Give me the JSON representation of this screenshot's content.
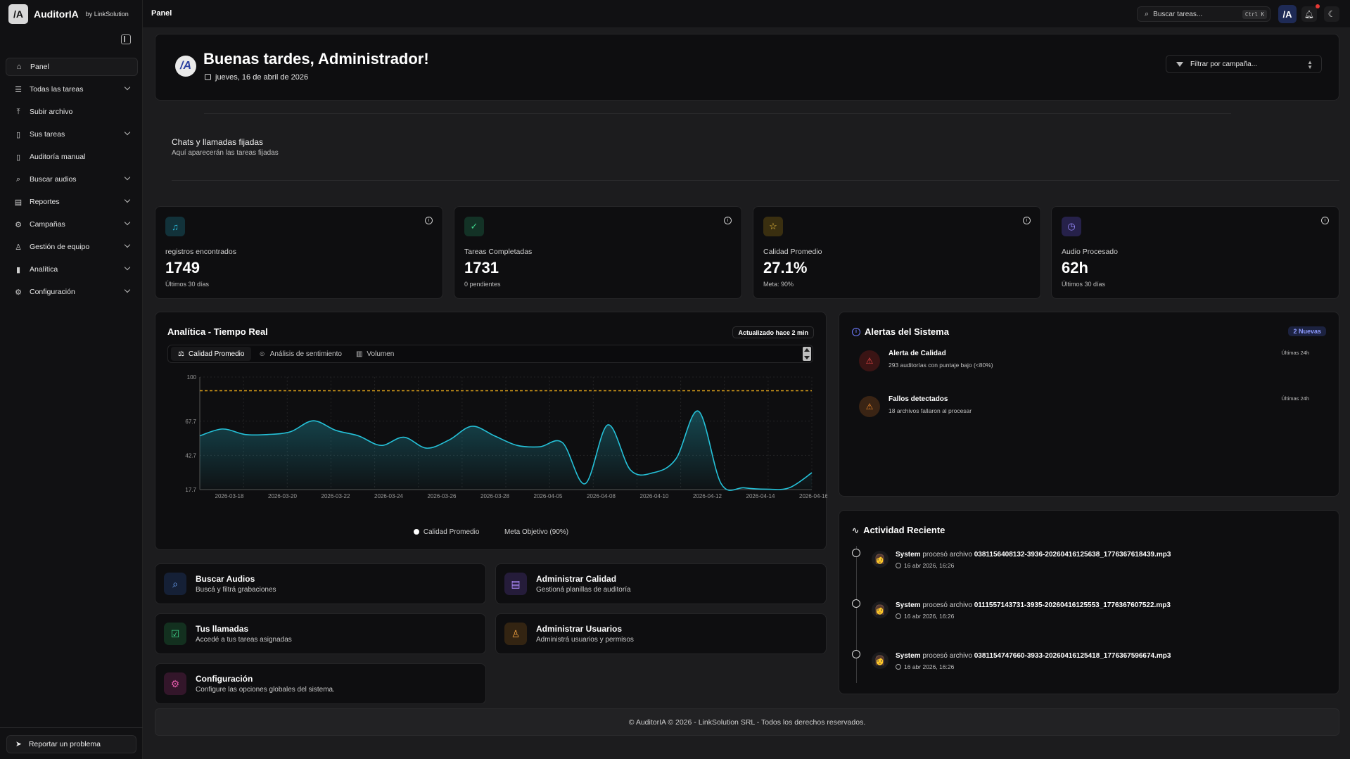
{
  "brand": {
    "name": "AuditorIA",
    "by": "by LinkSolution",
    "logo_letter": "/A"
  },
  "topbar": {
    "title": "Panel",
    "search_placeholder": "Buscar tareas...",
    "shortcut": "Ctrl K",
    "avatar_letter": "/A"
  },
  "sidebar": {
    "items": [
      {
        "label": "Panel",
        "icon": "home-icon",
        "glyph": "⌂",
        "active": true,
        "chevron": false
      },
      {
        "label": "Todas las tareas",
        "icon": "list-icon",
        "glyph": "☰",
        "chevron": true
      },
      {
        "label": "Subir archivo",
        "icon": "upload-icon",
        "glyph": "⤒",
        "chevron": false
      },
      {
        "label": "Sus tareas",
        "icon": "file-icon",
        "glyph": "▯",
        "chevron": true
      },
      {
        "label": "Auditoría manual",
        "icon": "file-plus-icon",
        "glyph": "▯",
        "chevron": false
      },
      {
        "label": "Buscar audios",
        "icon": "search-icon",
        "glyph": "⌕",
        "chevron": true
      },
      {
        "label": "Reportes",
        "icon": "report-icon",
        "glyph": "▤",
        "chevron": true
      },
      {
        "label": "Campañas",
        "icon": "campaign-icon",
        "glyph": "⚙",
        "chevron": true
      },
      {
        "label": "Gestión de equipo",
        "icon": "users-icon",
        "glyph": "♙",
        "chevron": true
      },
      {
        "label": "Analítica",
        "icon": "bar-chart-icon",
        "glyph": "▮",
        "chevron": true
      },
      {
        "label": "Configuración",
        "icon": "gear-icon",
        "glyph": "⚙",
        "chevron": true
      }
    ],
    "report_button": "Reportar un problema"
  },
  "header": {
    "greeting": "Buenas tardes, Administrador!",
    "date": "jueves, 16 de abril de 2026",
    "filter_placeholder": "Filtrar por campaña..."
  },
  "pinned": {
    "title": "Chats y llamadas fijadas",
    "subtitle": "Aquí aparecerán las tareas fijadas"
  },
  "stats": [
    {
      "label": "registros encontrados",
      "value": "1749",
      "sub": "Últimos 30 días",
      "icon": "file-audio-icon",
      "glyph": "♫",
      "color": "#2bb7d6",
      "bg": "#12323a"
    },
    {
      "label": "Tareas Completadas",
      "value": "1731",
      "sub": "0 pendientes",
      "icon": "check-circle-icon",
      "glyph": "✓",
      "color": "#3fd18a",
      "bg": "#133226"
    },
    {
      "label": "Calidad Promedio",
      "value": "27.1%",
      "sub": "Meta: 90%",
      "icon": "star-icon",
      "glyph": "☆",
      "color": "#f5c542",
      "bg": "#3a2f10"
    },
    {
      "label": "Audio Procesado",
      "value": "62h",
      "sub": "Últimos 30 días",
      "icon": "clock-icon",
      "glyph": "◷",
      "color": "#9a8cff",
      "bg": "#26214a"
    }
  ],
  "analytics": {
    "title": "Analítica - Tiempo Real",
    "updated": "Actualizado hace 2 min",
    "tabs": [
      {
        "label": "Calidad Promedio",
        "icon": "scale-icon",
        "glyph": "⚖",
        "active": true
      },
      {
        "label": "Análisis de sentimiento",
        "icon": "smile-icon",
        "glyph": "☺",
        "active": false
      },
      {
        "label": "Volumen",
        "icon": "volume-chart-icon",
        "glyph": "▥",
        "active": false
      }
    ],
    "legend_series": "Calidad Promedio",
    "legend_target": "Meta Objetivo (90%)"
  },
  "chart_data": {
    "type": "area",
    "x_ticks": [
      "2026-03-18",
      "2026-03-20",
      "2026-03-22",
      "2026-03-24",
      "2026-03-26",
      "2026-03-28",
      "2026-04-05",
      "2026-04-08",
      "2026-04-10",
      "2026-04-12",
      "2026-04-14",
      "2026-04-16"
    ],
    "y_ticks": [
      "100",
      "67.7",
      "42.7",
      "17.7"
    ],
    "ylim": [
      17.7,
      100
    ],
    "target": 90,
    "series": [
      {
        "name": "Calidad Promedio",
        "values": [
          57,
          62,
          58,
          58,
          60,
          68,
          61,
          57,
          50,
          56,
          48,
          54,
          64,
          57,
          50,
          49,
          52,
          22,
          65,
          32,
          30,
          40,
          75,
          22,
          19,
          18,
          19,
          30
        ]
      },
      {
        "name": "Meta Objetivo (90%)",
        "values": [
          90,
          90
        ]
      }
    ],
    "colors": {
      "line": "#25c2d9",
      "target": "#e0a21a"
    }
  },
  "alerts": {
    "title": "Alertas del Sistema",
    "badge": "2 Nuevas",
    "items": [
      {
        "title": "Alerta de Calidad",
        "sub": "293 auditorías con puntaje bajo (<80%)",
        "time": "Últimas 24h",
        "icon": "warning-icon",
        "glyph": "⚠",
        "color": "#f04848",
        "bg": "#3a1414"
      },
      {
        "title": "Fallos detectados",
        "sub": "18 archivos fallaron al procesar",
        "time": "Últimas 24h",
        "icon": "warning-icon",
        "glyph": "⚠",
        "color": "#f08a2a",
        "bg": "#3a2414"
      }
    ]
  },
  "activity": {
    "title": "Actividad Reciente",
    "items": [
      {
        "actor": "System",
        "verb": "procesó archivo",
        "file": "0381156408132-3936-20260416125638_1776367618439.mp3",
        "time": "16 abr 2026, 16:26"
      },
      {
        "actor": "System",
        "verb": "procesó archivo",
        "file": "0111557143731-3935-20260416125553_1776367607522.mp3",
        "time": "16 abr 2026, 16:26"
      },
      {
        "actor": "System",
        "verb": "procesó archivo",
        "file": "0381154747660-3933-20260416125418_1776367596674.mp3",
        "time": "16 abr 2026, 16:26"
      }
    ]
  },
  "quick": [
    {
      "title": "Buscar Audios",
      "sub": "Buscá y filtrá grabaciones",
      "icon": "search-icon",
      "glyph": "⌕",
      "color": "#6ea8ff",
      "bg": "#152036"
    },
    {
      "title": "Administrar Calidad",
      "sub": "Gestioná planillas de auditoría",
      "icon": "clipboard-icon",
      "glyph": "▤",
      "color": "#b08cff",
      "bg": "#251c3a"
    },
    {
      "title": "Tus llamadas",
      "sub": "Accedé a tus tareas asignadas",
      "icon": "check-square-icon",
      "glyph": "☑",
      "color": "#3fd18a",
      "bg": "#13301f"
    },
    {
      "title": "Administrar Usuarios",
      "sub": "Administrá usuarios y permisos",
      "icon": "users-icon",
      "glyph": "♙",
      "color": "#f0a040",
      "bg": "#332412"
    },
    {
      "title": "Configuración",
      "sub": "Configure las opciones globales del sistema.",
      "icon": "gear-icon",
      "glyph": "⚙",
      "color": "#e05aa8",
      "bg": "#33162a"
    }
  ],
  "footer": "© AuditorIA © 2026 - LinkSolution SRL - Todos los derechos reservados."
}
